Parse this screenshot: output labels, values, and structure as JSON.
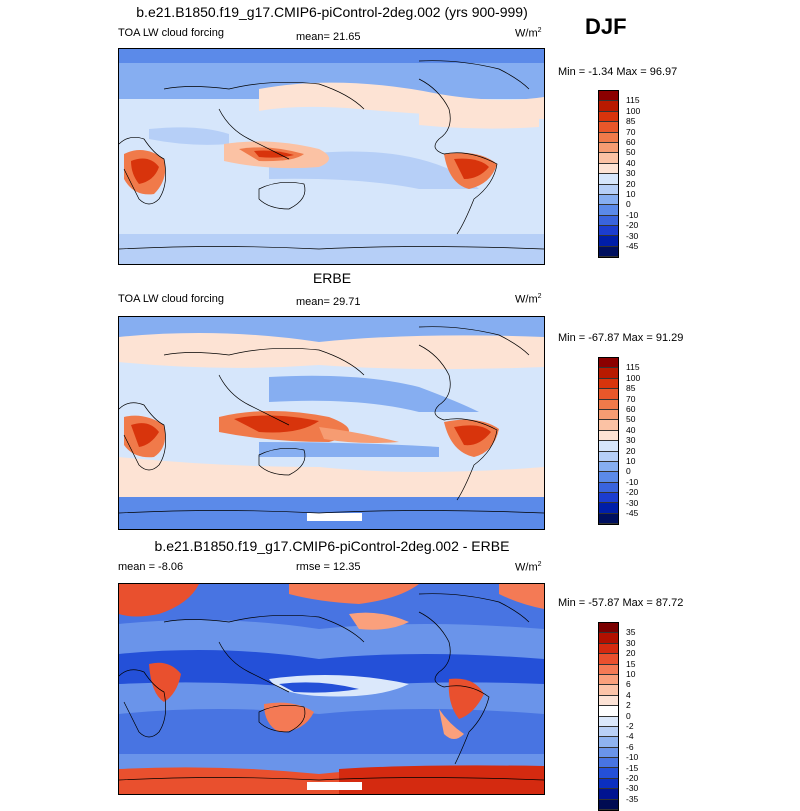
{
  "header": {
    "season": "DJF"
  },
  "panels": [
    {
      "title": "b.e21.B1850.f19_g17.CMIP6-piControl-2deg.002 (yrs 900-999)",
      "left_label": "TOA LW cloud forcing",
      "center_label": "mean=  21.65",
      "units": "W/m",
      "units_sup": "2",
      "minmax": "Min =  -1.34 Max =  96.97",
      "colorbar_labels": [
        "115",
        "100",
        "85",
        "70",
        "60",
        "50",
        "40",
        "30",
        "20",
        "10",
        "0",
        "-10",
        "-20",
        "-30",
        "-45"
      ]
    },
    {
      "title": "ERBE",
      "left_label": "TOA LW cloud forcing",
      "center_label": "mean=  29.71",
      "units": "W/m",
      "units_sup": "2",
      "minmax": "Min = -67.87 Max =  91.29",
      "colorbar_labels": [
        "115",
        "100",
        "85",
        "70",
        "60",
        "50",
        "40",
        "30",
        "20",
        "10",
        "0",
        "-10",
        "-20",
        "-30",
        "-45"
      ]
    },
    {
      "title": "b.e21.B1850.f19_g17.CMIP6-piControl-2deg.002 - ERBE",
      "left_label": "mean =  -8.06",
      "center_label": "rmse =  12.35",
      "units": "W/m",
      "units_sup": "2",
      "minmax": "Min = -57.87 Max =  87.72",
      "colorbar_labels": [
        "35",
        "30",
        "20",
        "15",
        "10",
        "6",
        "4",
        "2",
        "0",
        "-2",
        "-4",
        "-6",
        "-10",
        "-15",
        "-20",
        "-30",
        "-35"
      ]
    }
  ],
  "colors": {
    "field_scale": [
      "#8b0000",
      "#b81a00",
      "#d8340c",
      "#e9572a",
      "#f07a4a",
      "#f69c72",
      "#fbc2a4",
      "#fde3d4",
      "#f4f8ff",
      "#d6e6fb",
      "#b6cff7",
      "#86aef1",
      "#5b8ae9",
      "#3a64dd",
      "#1c3dcf",
      "#001ea8",
      "#00105f"
    ],
    "diff_scale": [
      "#7a0000",
      "#b21000",
      "#d42a10",
      "#e9502e",
      "#f47a55",
      "#faa07c",
      "#fcc4a9",
      "#fde3d6",
      "#ffffff",
      "#dbe8fb",
      "#b9d0f6",
      "#8fb3f0",
      "#6a94ea",
      "#4874e2",
      "#2450d8",
      "#0b2fc0",
      "#001390",
      "#000b52"
    ]
  }
}
